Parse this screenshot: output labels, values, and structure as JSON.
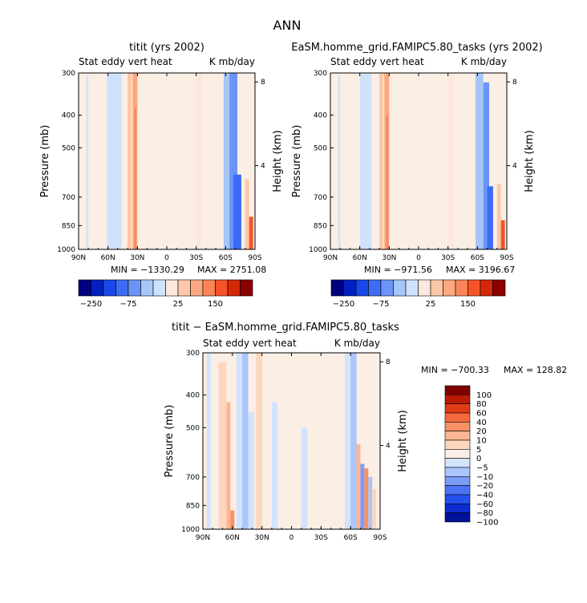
{
  "figure_title": "ANN",
  "colors": {
    "cbar_main": [
      "#000080",
      "#0020c0",
      "#1848e8",
      "#3c6cf4",
      "#6a94f6",
      "#a6c6f8",
      "#cfe2fc",
      "#fde8dc",
      "#fcc8a8",
      "#fca880",
      "#fc8458",
      "#f45428",
      "#d42808",
      "#8c0000"
    ],
    "cbar_diff": [
      "#00129a",
      "#0c2cd0",
      "#2450ec",
      "#4a74f4",
      "#7a9cf7",
      "#aac6fa",
      "#d2e4fd",
      "#fbeee4",
      "#fdd6bc",
      "#fbb592",
      "#f89066",
      "#f4683c",
      "#e03c14",
      "#b81a06",
      "#7e0000"
    ],
    "zero_fill": "#fbeee4",
    "neg_light": "#cde0fb"
  },
  "chart_data": [
    {
      "type": "heatmap",
      "title": "titit (yrs 2002)",
      "left_label": "Stat eddy vert heat",
      "right_label": "K mb/day",
      "xlabel": "",
      "ylabel": "Pressure (mb)",
      "ylabel_right": "Height (km)",
      "x_ticks": [
        "90N",
        "60N",
        "30N",
        "0",
        "30S",
        "60S",
        "90S"
      ],
      "y_ticks": [
        "300",
        "400",
        "500",
        "700",
        "850",
        "1000"
      ],
      "y_right_ticks": [
        "8",
        "4"
      ],
      "min_text": "MIN = −1330.29",
      "max_text": "MAX = 2751.08",
      "colorbar_labels": [
        "−250",
        "−75",
        "25",
        "150"
      ],
      "features": [
        {
          "lat_from": 82,
          "lat_to": 80,
          "p_top": 305,
          "level": -1
        },
        {
          "lat_from": 61,
          "lat_to": 46,
          "p_top": 300,
          "level": -1
        },
        {
          "lat_from": 40,
          "lat_to": 36,
          "p_top": 300,
          "level": 1
        },
        {
          "lat_from": 35,
          "lat_to": 30,
          "p_top": 300,
          "level": 2
        },
        {
          "lat_from": 33,
          "lat_to": 31,
          "p_top": 380,
          "level": 3
        },
        {
          "lat_from": -30,
          "lat_to": -36,
          "p_top": 300,
          "level": 0
        },
        {
          "lat_from": -58,
          "lat_to": -66,
          "p_top": 300,
          "level": -2
        },
        {
          "lat_from": -64,
          "lat_to": -72,
          "p_top": 300,
          "level": -3
        },
        {
          "lat_from": -68,
          "lat_to": -76,
          "p_top": 600,
          "level": -4
        },
        {
          "lat_from": -80,
          "lat_to": -84,
          "p_top": 620,
          "level": 1
        },
        {
          "lat_from": -84,
          "lat_to": -88,
          "p_top": 800,
          "level": 4
        }
      ]
    },
    {
      "type": "heatmap",
      "title": "EaSM.homme_grid.FAMIPC5.80_tasks (yrs 2002)",
      "left_label": "Stat eddy vert heat",
      "right_label": "K mb/day",
      "xlabel": "",
      "ylabel": "Pressure (mb)",
      "ylabel_right": "Height (km)",
      "x_ticks": [
        "90N",
        "60N",
        "30N",
        "0",
        "30S",
        "60S",
        "90S"
      ],
      "y_ticks": [
        "300",
        "400",
        "500",
        "700",
        "850",
        "1000"
      ],
      "y_right_ticks": [
        "8",
        "4"
      ],
      "min_text": "MIN = −971.56",
      "max_text": "MAX = 3196.67",
      "colorbar_labels": [
        "−250",
        "−75",
        "25",
        "150"
      ],
      "features": [
        {
          "lat_from": 82,
          "lat_to": 80,
          "p_top": 305,
          "level": -1
        },
        {
          "lat_from": 60,
          "lat_to": 48,
          "p_top": 300,
          "level": -1
        },
        {
          "lat_from": 40,
          "lat_to": 36,
          "p_top": 300,
          "level": 1
        },
        {
          "lat_from": 35,
          "lat_to": 30,
          "p_top": 300,
          "level": 2
        },
        {
          "lat_from": 33,
          "lat_to": 31,
          "p_top": 400,
          "level": 3
        },
        {
          "lat_from": -30,
          "lat_to": -36,
          "p_top": 300,
          "level": 0
        },
        {
          "lat_from": -58,
          "lat_to": -66,
          "p_top": 300,
          "level": -2
        },
        {
          "lat_from": -66,
          "lat_to": -72,
          "p_top": 320,
          "level": -3
        },
        {
          "lat_from": -70,
          "lat_to": -76,
          "p_top": 650,
          "level": -4
        },
        {
          "lat_from": -80,
          "lat_to": -84,
          "p_top": 640,
          "level": 1
        },
        {
          "lat_from": -84,
          "lat_to": -88,
          "p_top": 820,
          "level": 4
        }
      ]
    },
    {
      "type": "heatmap",
      "title": "titit − EaSM.homme_grid.FAMIPC5.80_tasks",
      "left_label": "Stat eddy vert heat",
      "right_label": "K mb/day",
      "xlabel": "",
      "ylabel": "Pressure (mb)",
      "ylabel_right": "Height (km)",
      "x_ticks": [
        "90N",
        "60N",
        "30N",
        "0",
        "30S",
        "60S",
        "90S"
      ],
      "y_ticks": [
        "300",
        "400",
        "500",
        "700",
        "850",
        "1000"
      ],
      "y_right_ticks": [
        "8",
        "4"
      ],
      "min_text": "MIN = −700.33",
      "max_text": "MAX = 128.82",
      "colorbar_labels": [
        "100",
        "80",
        "60",
        "40",
        "20",
        "10",
        "5",
        "0",
        "−5",
        "−10",
        "−20",
        "−40",
        "−60",
        "−80",
        "−100"
      ],
      "features": [
        {
          "lat_from": 86,
          "lat_to": 82,
          "p_top": 300,
          "level": -1
        },
        {
          "lat_from": 74,
          "lat_to": 66,
          "p_top": 320,
          "level": 1
        },
        {
          "lat_from": 66,
          "lat_to": 62,
          "p_top": 420,
          "level": 2
        },
        {
          "lat_from": 62,
          "lat_to": 58,
          "p_top": 880,
          "level": 3
        },
        {
          "lat_from": 56,
          "lat_to": 50,
          "p_top": 300,
          "level": -1
        },
        {
          "lat_from": 50,
          "lat_to": 44,
          "p_top": 300,
          "level": -2
        },
        {
          "lat_from": 44,
          "lat_to": 38,
          "p_top": 450,
          "level": -1
        },
        {
          "lat_from": 36,
          "lat_to": 30,
          "p_top": 300,
          "level": 1
        },
        {
          "lat_from": 20,
          "lat_to": 14,
          "p_top": 420,
          "level": -1
        },
        {
          "lat_from": -10,
          "lat_to": -16,
          "p_top": 500,
          "level": -1
        },
        {
          "lat_from": -54,
          "lat_to": -60,
          "p_top": 300,
          "level": -1
        },
        {
          "lat_from": -60,
          "lat_to": -66,
          "p_top": 300,
          "level": -2
        },
        {
          "lat_from": -66,
          "lat_to": -70,
          "p_top": 560,
          "level": 2
        },
        {
          "lat_from": -70,
          "lat_to": -74,
          "p_top": 640,
          "level": -3
        },
        {
          "lat_from": -74,
          "lat_to": -78,
          "p_top": 660,
          "level": 3
        },
        {
          "lat_from": -78,
          "lat_to": -82,
          "p_top": 700,
          "level": -2
        },
        {
          "lat_from": -82,
          "lat_to": -86,
          "p_top": 760,
          "level": 1
        }
      ]
    }
  ]
}
